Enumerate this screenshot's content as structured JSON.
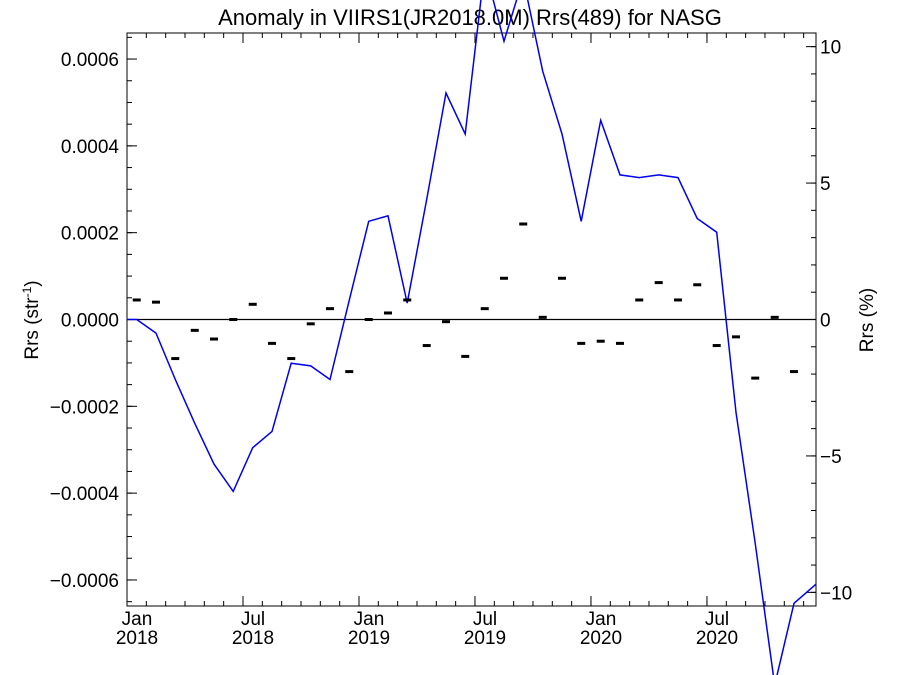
{
  "chart_data": {
    "type": "scatter",
    "title": "Anomaly in VIIRS1(JR2018.0M) Rrs(489) for NASG",
    "ylabel_left": "Rrs (str",
    "ylabel_left_sup": "-1",
    "ylabel_left_end": ")",
    "ylabel_right": "Rrs (%)",
    "xlim": [
      2018.0,
      2020.97
    ],
    "ylim_left": [
      -0.00066,
      0.00066
    ],
    "ylim_right": [
      -10.5,
      10.5
    ],
    "x_ticks": [
      {
        "x": 2018.0,
        "top": "Jan",
        "bottom": "2018"
      },
      {
        "x": 2018.5,
        "top": "Jul",
        "bottom": "2018"
      },
      {
        "x": 2019.0,
        "top": "Jan",
        "bottom": "2019"
      },
      {
        "x": 2019.5,
        "top": "Jul",
        "bottom": "2019"
      },
      {
        "x": 2020.0,
        "top": "Jan",
        "bottom": "2020"
      },
      {
        "x": 2020.5,
        "top": "Jul",
        "bottom": "2020"
      }
    ],
    "y_left_ticks": [
      {
        "v": 0.0006,
        "label": "0.0006"
      },
      {
        "v": 0.0004,
        "label": "0.0004"
      },
      {
        "v": 0.0002,
        "label": "0.0002"
      },
      {
        "v": 0.0,
        "label": "0.0000"
      },
      {
        "v": -0.0002,
        "label": "−0.0002"
      },
      {
        "v": -0.0004,
        "label": "−0.0004"
      },
      {
        "v": -0.0006,
        "label": "−0.0006"
      }
    ],
    "y_right_ticks": [
      {
        "v": 10,
        "label": "10"
      },
      {
        "v": 5,
        "label": "5"
      },
      {
        "v": 0,
        "label": "0"
      },
      {
        "v": -5,
        "label": "−5"
      },
      {
        "v": -10,
        "label": "−10"
      }
    ],
    "reference_line": 0,
    "series": [
      {
        "kind": "points",
        "color": "#000000",
        "x": [
          2018.042,
          2018.125,
          2018.208,
          2018.292,
          2018.375,
          2018.458,
          2018.542,
          2018.625,
          2018.708,
          2018.792,
          2018.875,
          2018.958,
          2019.042,
          2019.125,
          2019.208,
          2019.292,
          2019.375,
          2019.458,
          2019.542,
          2019.625,
          2019.708,
          2019.792,
          2019.875,
          2019.958,
          2020.042,
          2020.125,
          2020.208,
          2020.292,
          2020.375,
          2020.458,
          2020.542,
          2020.625,
          2020.708,
          2020.792,
          2020.875
        ],
        "y": [
          4.5e-05,
          4e-05,
          -9e-05,
          -2.5e-05,
          -4.5e-05,
          0.0,
          3.5e-05,
          -5.5e-05,
          -9e-05,
          -1e-05,
          2.5e-05,
          -0.00012,
          0.0,
          1.5e-05,
          4.5e-05,
          -6e-05,
          -5e-06,
          -8.5e-05,
          2.5e-05,
          9.5e-05,
          0.00022,
          5e-06,
          9.5e-05,
          -5.5e-05,
          -5e-05,
          -5.5e-05,
          4.5e-05,
          8.5e-05,
          4.5e-05,
          8e-05,
          -6e-05,
          -4e-05,
          -0.000135,
          5e-06,
          -0.00012
        ]
      },
      {
        "kind": "line",
        "color": "#0000ee",
        "x": [
          2018.0,
          2018.042,
          2018.125,
          2018.208,
          2018.292,
          2018.375,
          2018.458,
          2018.542,
          2018.625,
          2018.708,
          2018.792,
          2018.875,
          2018.958,
          2019.042,
          2019.125,
          2019.208,
          2019.292,
          2019.375,
          2019.458,
          2019.542,
          2019.625,
          2019.708,
          2019.792,
          2019.875,
          2019.958,
          2020.042,
          2020.125,
          2020.208,
          2020.292,
          2020.375,
          2020.458,
          2020.542,
          2020.625,
          2020.708,
          2020.792,
          2020.875,
          2020.97
        ],
        "y": [
          0.0,
          0.0,
          -0.5,
          -2.2,
          -3.8,
          -5.3,
          -6.3,
          -4.7,
          -4.1,
          -1.6,
          -1.7,
          -2.2,
          0.7,
          3.6,
          3.8,
          0.6,
          4.4,
          8.3,
          6.8,
          12.9,
          10.2,
          12.5,
          9.1,
          6.8,
          3.6,
          7.3,
          5.3,
          5.2,
          5.3,
          5.2,
          3.7,
          3.2,
          -3.4,
          -8.2,
          -13.4,
          -10.4,
          -9.7
        ]
      }
    ],
    "grid": false,
    "legend": "none"
  }
}
